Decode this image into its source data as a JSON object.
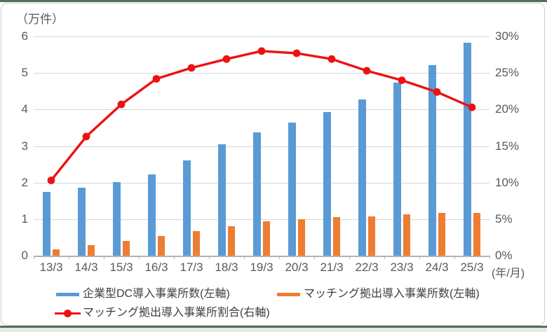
{
  "frame": {
    "rule_color": "#4d7257",
    "card_border_color": "#cfcfcf",
    "background": "#ffffff"
  },
  "chart_data": {
    "type": "bar",
    "subtype": "clustered-bars-with-line-dual-axis",
    "title": "",
    "unit_label_left": "（万件）",
    "unit_label_x": "(年/月)",
    "categories": [
      "13/3",
      "14/3",
      "15/3",
      "16/3",
      "17/3",
      "18/3",
      "19/3",
      "20/3",
      "21/3",
      "22/3",
      "23/3",
      "24/3",
      "25/3"
    ],
    "series": [
      {
        "name": "企業型DC導入事業所数(左軸)",
        "type": "bar",
        "axis": "left",
        "color": "#5B9BD5",
        "values": [
          1.75,
          1.86,
          2.02,
          2.22,
          2.61,
          3.05,
          3.37,
          3.65,
          3.93,
          4.28,
          4.73,
          5.21,
          5.83
        ]
      },
      {
        "name": "マッチング拠出導入事業所数(左軸)",
        "type": "bar",
        "axis": "left",
        "color": "#ED7D31",
        "values": [
          0.18,
          0.29,
          0.4,
          0.53,
          0.67,
          0.81,
          0.94,
          1.0,
          1.05,
          1.08,
          1.14,
          1.16,
          1.17
        ]
      },
      {
        "name": "マッチング拠出導入事業所割合(右軸)",
        "type": "line",
        "axis": "right",
        "color": "#ee1111",
        "values": [
          10.3,
          16.3,
          20.7,
          24.2,
          25.7,
          26.9,
          28.0,
          27.7,
          26.9,
          25.3,
          24.0,
          22.4,
          20.3
        ]
      }
    ],
    "left_axis": {
      "min": 0,
      "max": 6,
      "step": 1,
      "tick_labels": [
        "0",
        "1",
        "2",
        "3",
        "4",
        "5",
        "6"
      ]
    },
    "right_axis": {
      "min": 0,
      "max": 30,
      "step": 5,
      "tick_labels": [
        "0%",
        "5%",
        "10%",
        "15%",
        "20%",
        "25%",
        "30%"
      ]
    },
    "grid": true,
    "legend_position": "bottom",
    "axis_text_color": "#595959",
    "grid_color": "#d6d6d6"
  }
}
